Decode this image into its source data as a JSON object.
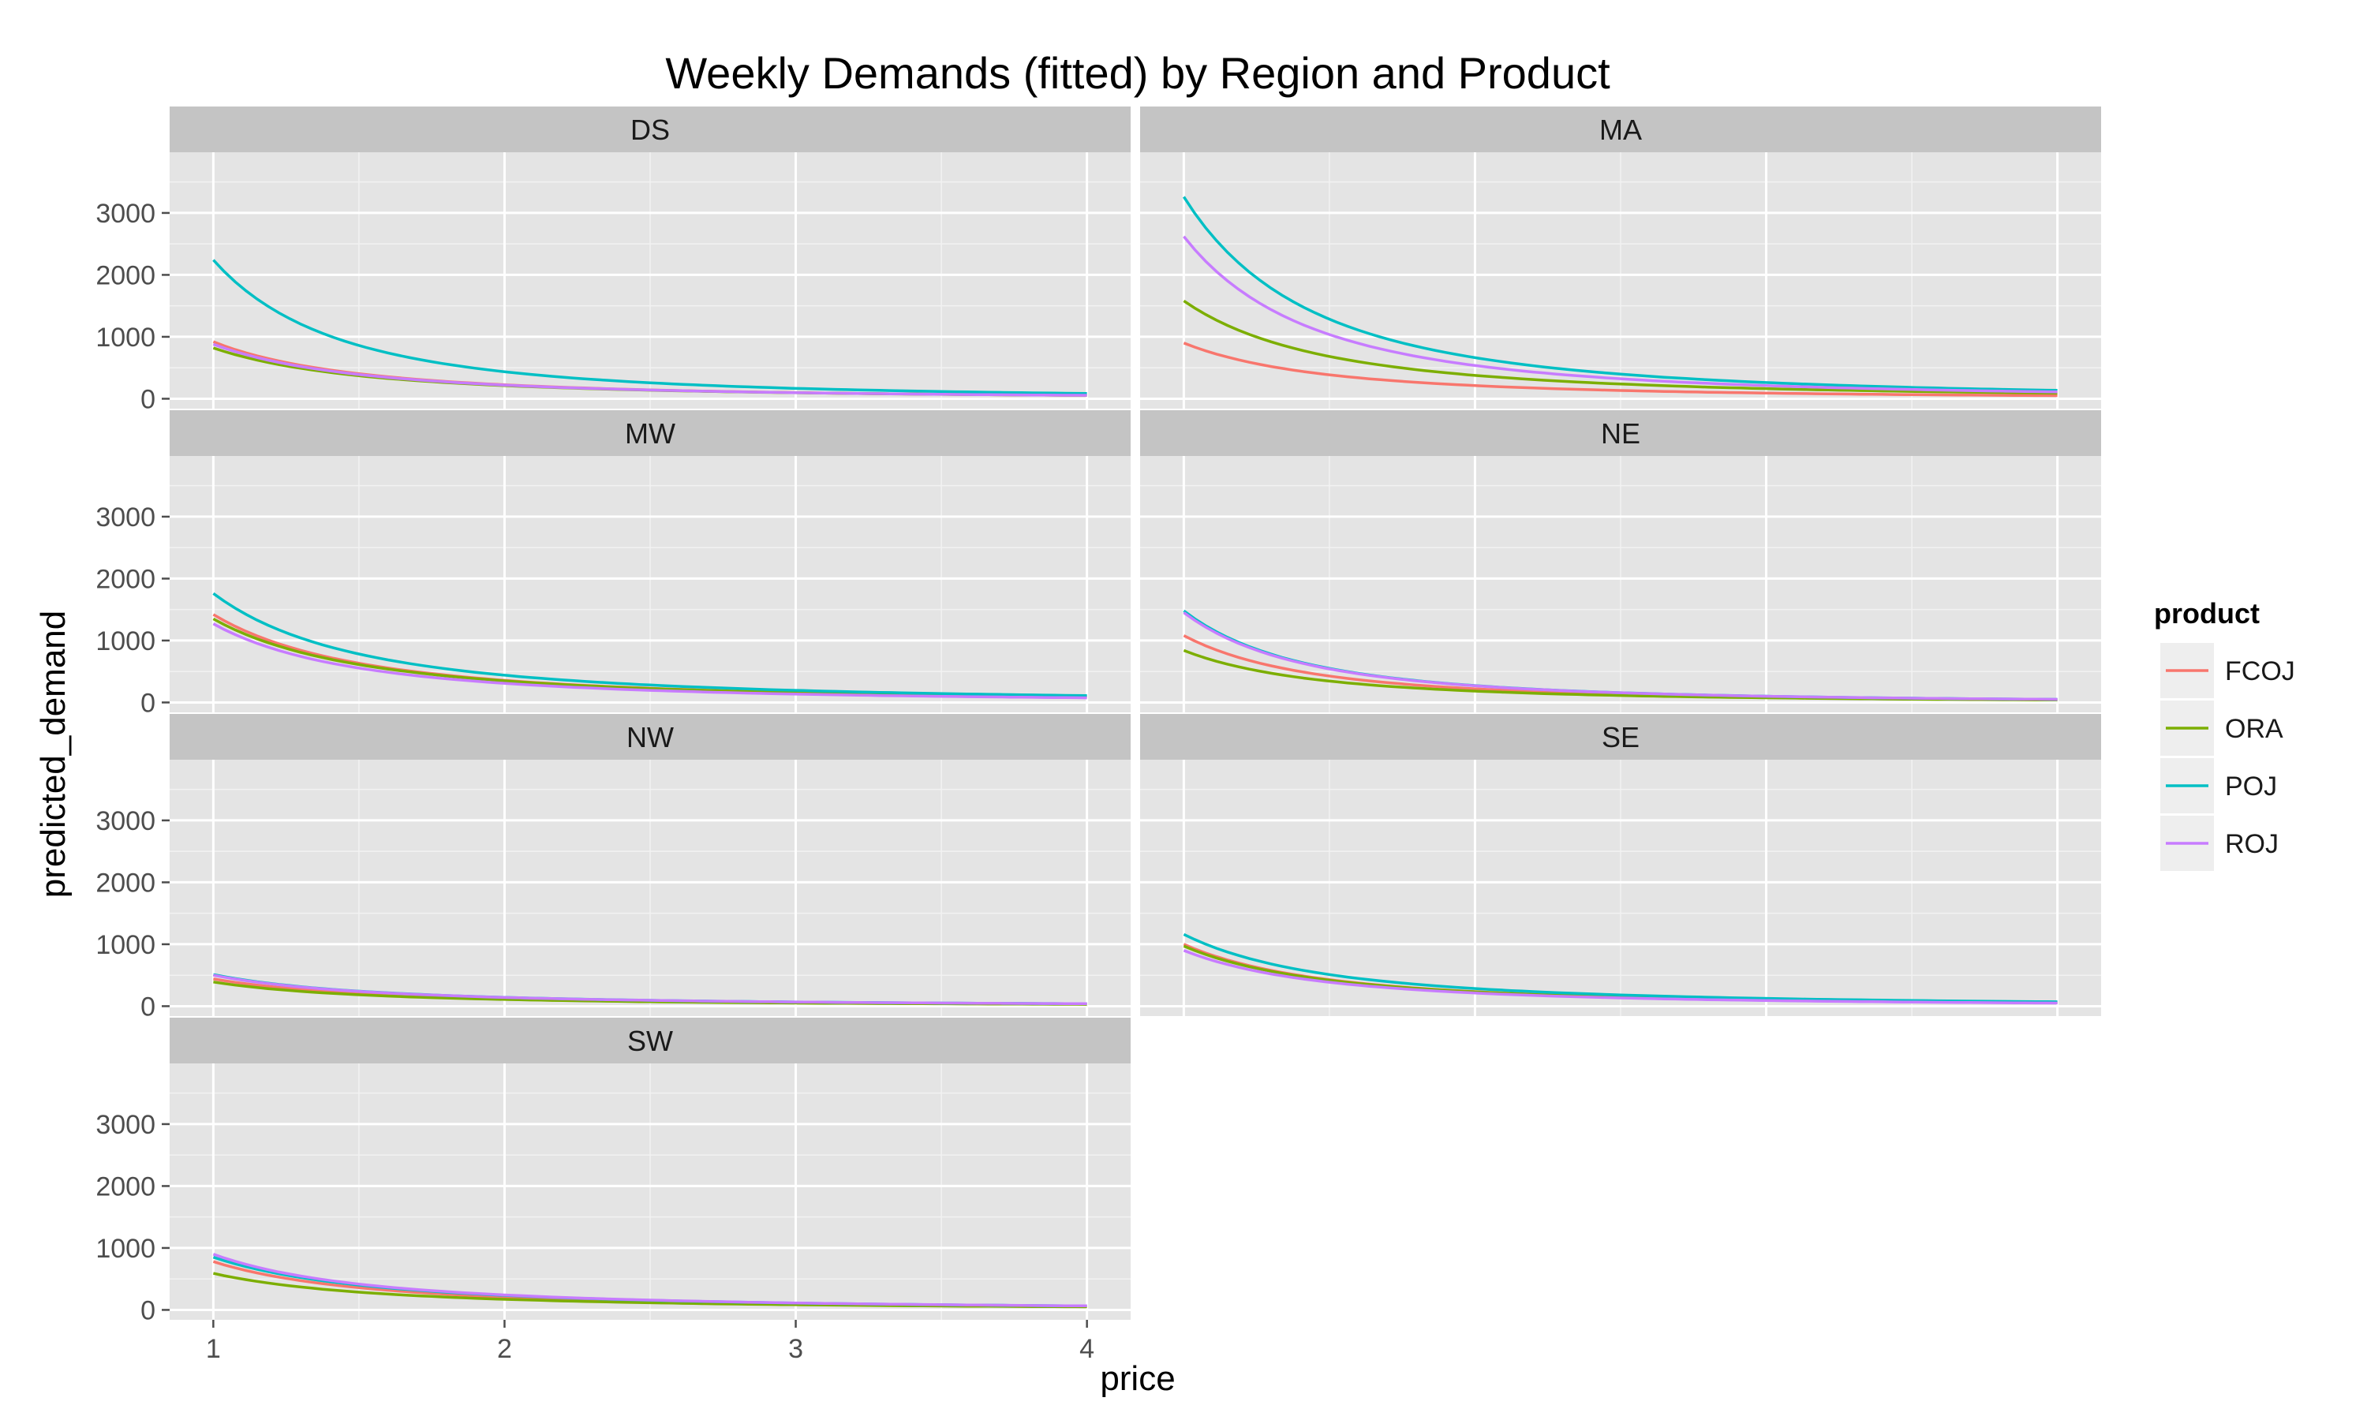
{
  "chart_data": {
    "type": "line",
    "title": "Weekly Demands (fitted) by Region and Product",
    "xlabel": "price",
    "ylabel": "predicted_demand",
    "xlim": [
      0.85,
      4.15
    ],
    "ylim": [
      -160,
      3980
    ],
    "x_ticks": [
      "1",
      "2",
      "3",
      "4"
    ],
    "y_ticks": [
      "0",
      "1000",
      "2000",
      "3000"
    ],
    "x_range": [
      1,
      4
    ],
    "grid": true,
    "legend": {
      "title": "product",
      "placement": "right",
      "entries": [
        "FCOJ",
        "ORA",
        "POJ",
        "ROJ"
      ]
    },
    "colors": {
      "FCOJ": "#F8766D",
      "ORA": "#7CAE00",
      "POJ": "#00BFC4",
      "ROJ": "#C77CFF"
    },
    "panels": [
      {
        "region": "DS",
        "series": [
          {
            "name": "FCOJ",
            "at_price_1": 920,
            "at_price_4": 55
          },
          {
            "name": "ORA",
            "at_price_1": 820,
            "at_price_4": 55
          },
          {
            "name": "POJ",
            "at_price_1": 2240,
            "at_price_4": 85
          },
          {
            "name": "ROJ",
            "at_price_1": 880,
            "at_price_4": 55
          }
        ]
      },
      {
        "region": "MA",
        "series": [
          {
            "name": "FCOJ",
            "at_price_1": 900,
            "at_price_4": 50
          },
          {
            "name": "ORA",
            "at_price_1": 1580,
            "at_price_4": 90
          },
          {
            "name": "POJ",
            "at_price_1": 3260,
            "at_price_4": 135
          },
          {
            "name": "ROJ",
            "at_price_1": 2620,
            "at_price_4": 110
          }
        ]
      },
      {
        "region": "MW",
        "series": [
          {
            "name": "FCOJ",
            "at_price_1": 1420,
            "at_price_4": 90
          },
          {
            "name": "ORA",
            "at_price_1": 1350,
            "at_price_4": 90
          },
          {
            "name": "POJ",
            "at_price_1": 1760,
            "at_price_4": 110
          },
          {
            "name": "ROJ",
            "at_price_1": 1270,
            "at_price_4": 75
          }
        ]
      },
      {
        "region": "NE",
        "series": [
          {
            "name": "FCOJ",
            "at_price_1": 1080,
            "at_price_4": 45
          },
          {
            "name": "ORA",
            "at_price_1": 840,
            "at_price_4": 40
          },
          {
            "name": "POJ",
            "at_price_1": 1480,
            "at_price_4": 50
          },
          {
            "name": "ROJ",
            "at_price_1": 1450,
            "at_price_4": 50
          }
        ]
      },
      {
        "region": "NW",
        "series": [
          {
            "name": "FCOJ",
            "at_price_1": 440,
            "at_price_4": 35
          },
          {
            "name": "ORA",
            "at_price_1": 390,
            "at_price_4": 30
          },
          {
            "name": "POJ",
            "at_price_1": 510,
            "at_price_4": 40
          },
          {
            "name": "ROJ",
            "at_price_1": 500,
            "at_price_4": 40
          }
        ]
      },
      {
        "region": "SE",
        "series": [
          {
            "name": "FCOJ",
            "at_price_1": 1000,
            "at_price_4": 55
          },
          {
            "name": "ORA",
            "at_price_1": 970,
            "at_price_4": 55
          },
          {
            "name": "POJ",
            "at_price_1": 1160,
            "at_price_4": 70
          },
          {
            "name": "ROJ",
            "at_price_1": 900,
            "at_price_4": 50
          }
        ]
      },
      {
        "region": "SW",
        "series": [
          {
            "name": "FCOJ",
            "at_price_1": 780,
            "at_price_4": 55
          },
          {
            "name": "ORA",
            "at_price_1": 590,
            "at_price_4": 50
          },
          {
            "name": "POJ",
            "at_price_1": 850,
            "at_price_4": 65
          },
          {
            "name": "ROJ",
            "at_price_1": 900,
            "at_price_4": 65
          }
        ]
      }
    ]
  }
}
